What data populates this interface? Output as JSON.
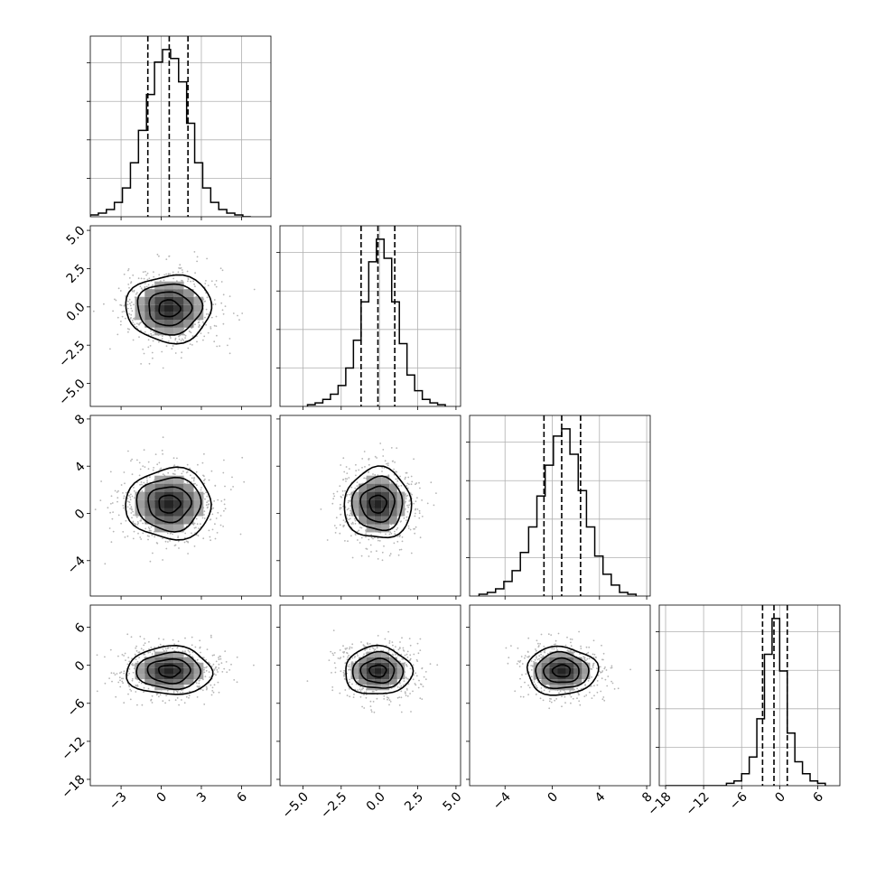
{
  "chart_data": {
    "type": "corner",
    "title": "",
    "n_params": 4,
    "grid": true,
    "params": [
      {
        "name": "",
        "range": [
          -5.3,
          8.2
        ],
        "ticks": [
          -3,
          0,
          3,
          6
        ],
        "tick_labels": [
          "−3",
          "0",
          "3",
          "6"
        ],
        "mean": 0.6,
        "sd": 1.6,
        "quantiles": [
          -1.0,
          0.6,
          2.0
        ]
      },
      {
        "name": "",
        "range": [
          -6.5,
          5.3
        ],
        "ticks": [
          -5.0,
          -2.5,
          0.0,
          2.5,
          5.0
        ],
        "tick_labels": [
          "−5.0",
          "−2.5",
          "0.0",
          "2.5",
          "5.0"
        ],
        "mean": -0.1,
        "sd": 1.1,
        "quantiles": [
          -1.2,
          -0.1,
          1.0
        ]
      },
      {
        "name": "",
        "range": [
          -7.0,
          8.3
        ],
        "ticks": [
          -4,
          0,
          4,
          8
        ],
        "tick_labels": [
          "−4",
          "0",
          "4",
          "8"
        ],
        "mean": 0.8,
        "sd": 1.5,
        "quantiles": [
          -0.7,
          0.8,
          2.4
        ]
      },
      {
        "name": "",
        "range": [
          -19.0,
          9.5
        ],
        "ticks": [
          -18,
          -12,
          -6,
          0,
          6
        ],
        "tick_labels": [
          "−18",
          "−12",
          "−6",
          "0",
          "6"
        ],
        "mean": -0.9,
        "sd": 1.9,
        "quantiles": [
          -2.7,
          -0.9,
          1.2
        ]
      }
    ],
    "histograms": [
      {
        "param": 0,
        "bin_edges": [
          -5.3,
          -4.7,
          -4.1,
          -3.5,
          -2.9,
          -2.3,
          -1.7,
          -1.1,
          -0.5,
          0.1,
          0.7,
          1.3,
          1.9,
          2.5,
          3.1,
          3.7,
          4.3,
          4.9,
          5.5,
          6.1,
          6.7
        ],
        "counts": [
          1,
          2,
          4,
          8,
          16,
          30,
          48,
          68,
          86,
          93,
          88,
          75,
          52,
          30,
          16,
          8,
          4,
          2,
          1,
          0
        ]
      },
      {
        "param": 1,
        "bin_edges": [
          -4.7,
          -4.2,
          -3.7,
          -3.2,
          -2.7,
          -2.2,
          -1.7,
          -1.2,
          -0.7,
          -0.2,
          0.3,
          0.8,
          1.3,
          1.8,
          2.3,
          2.8,
          3.3,
          3.8,
          4.3
        ],
        "counts": [
          1,
          2,
          4,
          7,
          12,
          22,
          38,
          60,
          83,
          96,
          85,
          60,
          36,
          18,
          9,
          4,
          2,
          1
        ]
      },
      {
        "param": 2,
        "bin_edges": [
          -6.2,
          -5.5,
          -4.8,
          -4.1,
          -3.4,
          -2.7,
          -2.0,
          -1.3,
          -0.6,
          0.1,
          0.8,
          1.5,
          2.2,
          2.9,
          3.6,
          4.3,
          5.0,
          5.7,
          6.4,
          7.1
        ],
        "counts": [
          1,
          2,
          4,
          8,
          14,
          24,
          38,
          55,
          72,
          88,
          92,
          78,
          58,
          38,
          22,
          12,
          6,
          2,
          1
        ]
      },
      {
        "param": 3,
        "bin_edges": [
          -18.0,
          -16.8,
          -15.6,
          -14.4,
          -13.2,
          -12.0,
          -10.8,
          -9.6,
          -8.4,
          -7.2,
          -6.0,
          -4.8,
          -3.6,
          -2.4,
          -1.2,
          0.0,
          1.2,
          2.4,
          3.6,
          4.8,
          6.0,
          7.2
        ],
        "counts": [
          0,
          0,
          0,
          0,
          0,
          0,
          0,
          0,
          1,
          2,
          5,
          12,
          28,
          55,
          70,
          48,
          22,
          10,
          5,
          2,
          1
        ]
      }
    ]
  }
}
